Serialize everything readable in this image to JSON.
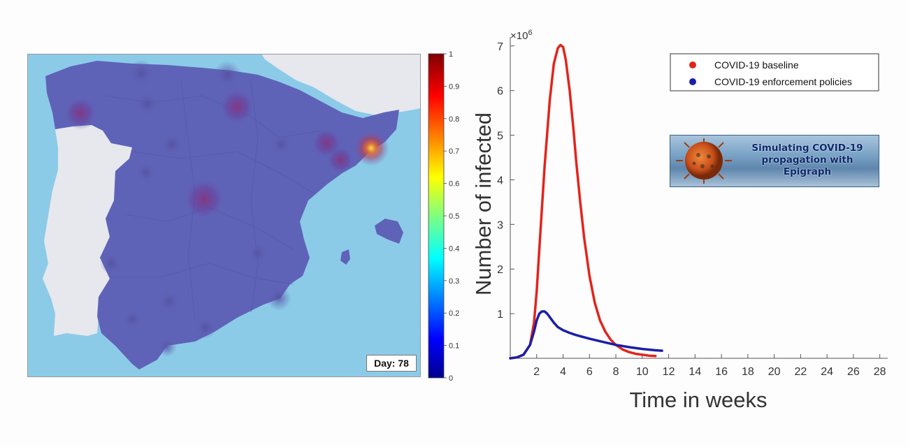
{
  "map": {
    "day_label": "Day: 78",
    "sea_color": "#8ccbe8",
    "land_color": "#5f63b8",
    "foreign_land_color": "#e6e8ee"
  },
  "colorbar": {
    "ticks": [
      "0",
      "0.1",
      "0.2",
      "0.3",
      "0.4",
      "0.5",
      "0.6",
      "0.7",
      "0.8",
      "0.9",
      "1"
    ]
  },
  "inset": {
    "lines": [
      "Simulating COVID-19",
      "propagation with",
      "Epigraph"
    ]
  },
  "chart_data": {
    "type": "line",
    "xlabel": "Time in weeks",
    "ylabel": "Number of infected",
    "y_multiplier_label": "×10",
    "y_multiplier_exponent": "6",
    "xlim": [
      0,
      28.6
    ],
    "ylim": [
      0,
      7.2
    ],
    "x_ticks": [
      2,
      4,
      6,
      8,
      10,
      12,
      14,
      16,
      18,
      20,
      22,
      24,
      26,
      28
    ],
    "y_ticks": [
      1,
      2,
      3,
      4,
      5,
      6,
      7
    ],
    "legend_position": "top-right",
    "series": [
      {
        "name": "COVID-19 baseline",
        "color": "#e2241c",
        "x": [
          0,
          0.5,
          1.0,
          1.5,
          1.8,
          2.0,
          2.3,
          2.6,
          3.0,
          3.3,
          3.6,
          3.8,
          4.0,
          4.2,
          4.5,
          4.8,
          5.0,
          5.3,
          5.6,
          6.0,
          6.4,
          6.8,
          7.2,
          7.6,
          8.0,
          8.5,
          9.0,
          9.5,
          10.0,
          10.5,
          11.0
        ],
        "values": [
          0,
          0.02,
          0.08,
          0.3,
          0.8,
          1.5,
          2.9,
          4.3,
          5.8,
          6.6,
          6.95,
          7.02,
          6.98,
          6.7,
          6.0,
          5.1,
          4.4,
          3.5,
          2.7,
          1.85,
          1.25,
          0.85,
          0.6,
          0.42,
          0.3,
          0.2,
          0.14,
          0.1,
          0.08,
          0.06,
          0.05
        ]
      },
      {
        "name": "COVID-19 enforcement policies",
        "color": "#1b1fa6",
        "x": [
          0,
          0.5,
          1.0,
          1.5,
          1.8,
          2.0,
          2.2,
          2.4,
          2.6,
          2.8,
          3.0,
          3.3,
          3.6,
          4.0,
          4.5,
          5.0,
          6.0,
          7.0,
          8.0,
          9.0,
          10.0,
          11.0,
          11.5
        ],
        "values": [
          0,
          0.02,
          0.08,
          0.3,
          0.6,
          0.85,
          1.0,
          1.05,
          1.05,
          1.0,
          0.92,
          0.8,
          0.7,
          0.63,
          0.57,
          0.52,
          0.44,
          0.37,
          0.3,
          0.25,
          0.21,
          0.18,
          0.17
        ]
      }
    ]
  }
}
